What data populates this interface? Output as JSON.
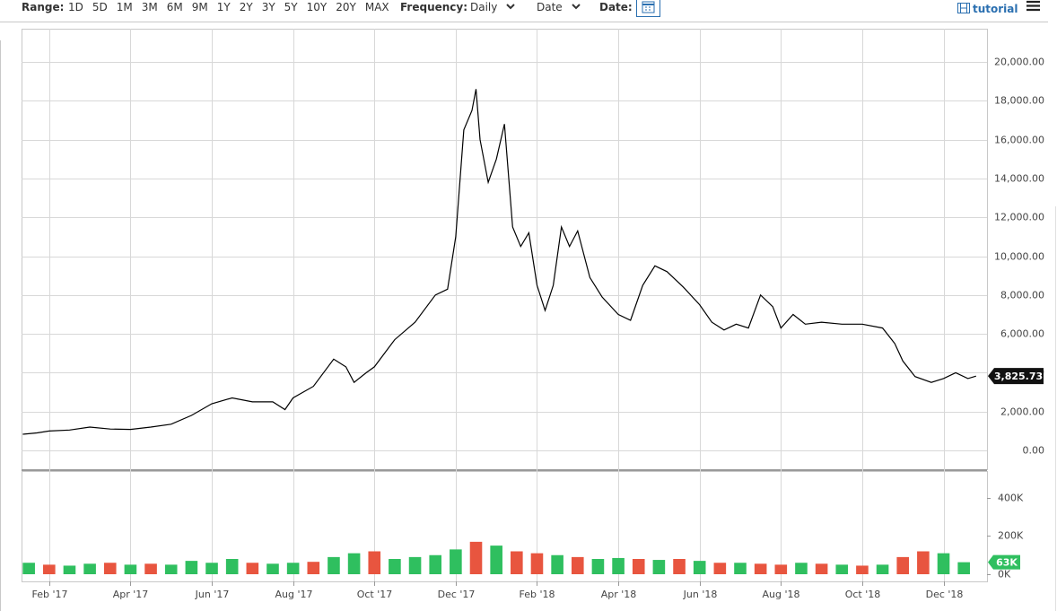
{
  "toolbar": {
    "range_label": "Range:",
    "ranges": [
      "1D",
      "5D",
      "1M",
      "3M",
      "6M",
      "9M",
      "1Y",
      "2Y",
      "3Y",
      "5Y",
      "10Y",
      "20Y",
      "MAX"
    ],
    "frequency_label": "Frequency:",
    "frequency": "Daily",
    "x_mode": "Date",
    "date_label": "Date:",
    "tutorial": "tutorial"
  },
  "chart_data": [
    {
      "type": "line",
      "color": "#000000",
      "grid": true,
      "x": [
        0.35,
        0.7,
        1,
        1.5,
        2,
        2.5,
        3,
        3.5,
        4,
        4.5,
        5,
        5.5,
        6,
        6.5,
        6.8,
        7,
        7.5,
        8,
        8.3,
        8.5,
        8.8,
        9,
        9.5,
        10,
        10.5,
        10.8,
        11,
        11.2,
        11.4,
        11.5,
        11.6,
        11.8,
        12,
        12.2,
        12.4,
        12.6,
        12.8,
        13,
        13.2,
        13.4,
        13.6,
        13.8,
        14,
        14.3,
        14.6,
        15,
        15.3,
        15.6,
        15.9,
        16.2,
        16.6,
        17,
        17.3,
        17.6,
        17.9,
        18.2,
        18.5,
        18.8,
        19,
        19.3,
        19.6,
        20,
        20.5,
        21,
        21.5,
        21.8,
        22,
        22.3,
        22.7,
        23,
        23.3,
        23.6,
        23.8
      ],
      "values": [
        830,
        900,
        1000,
        1050,
        1200,
        1100,
        1080,
        1200,
        1350,
        1800,
        2400,
        2700,
        2500,
        2500,
        2100,
        2700,
        3300,
        4700,
        4300,
        3500,
        4000,
        4300,
        5700,
        6600,
        8000,
        8300,
        11000,
        16500,
        17500,
        18600,
        16000,
        13800,
        15000,
        16800,
        11500,
        10500,
        11200,
        8500,
        7200,
        8500,
        11500,
        10500,
        11300,
        8900,
        7900,
        7000,
        6700,
        8500,
        9500,
        9200,
        8400,
        7500,
        6600,
        6200,
        6500,
        6300,
        8000,
        7400,
        6300,
        7000,
        6500,
        6600,
        6500,
        6500,
        6300,
        5500,
        4600,
        3800,
        3500,
        3700,
        4000,
        3700,
        3825.73
      ],
      "value_label": "3,825.73",
      "xlim": [
        0.32,
        24.07
      ],
      "xticks": [
        {
          "value": 1,
          "label": "Feb '17"
        },
        {
          "value": 3,
          "label": "Apr '17"
        },
        {
          "value": 5,
          "label": "Jun '17"
        },
        {
          "value": 7,
          "label": "Aug '17"
        },
        {
          "value": 9,
          "label": "Oct '17"
        },
        {
          "value": 11,
          "label": "Dec '17"
        },
        {
          "value": 13,
          "label": "Feb '18"
        },
        {
          "value": 15,
          "label": "Apr '18"
        },
        {
          "value": 17,
          "label": "Jun '18"
        },
        {
          "value": 19,
          "label": "Aug '18"
        },
        {
          "value": 21,
          "label": "Oct '18"
        },
        {
          "value": 23,
          "label": "Dec '18"
        }
      ],
      "ylim": [
        -970,
        21710
      ],
      "yticks": [
        {
          "value": 0,
          "label": "0.00"
        },
        {
          "value": 2000,
          "label": "2,000.00"
        },
        {
          "value": 4000,
          "label": "4,000.00"
        },
        {
          "value": 6000,
          "label": "6,000.00"
        },
        {
          "value": 8000,
          "label": "8,000.00"
        },
        {
          "value": 10000,
          "label": "10,000.00"
        },
        {
          "value": 12000,
          "label": "12,000.00"
        },
        {
          "value": 14000,
          "label": "14,000.00"
        },
        {
          "value": 16000,
          "label": "16,000.00"
        },
        {
          "value": 18000,
          "label": "18,000.00"
        },
        {
          "value": 20000,
          "label": "20,000.00"
        }
      ]
    },
    {
      "type": "bar",
      "x": [
        0.5,
        1,
        1.5,
        2,
        2.5,
        3,
        3.5,
        4,
        4.5,
        5,
        5.5,
        6,
        6.5,
        7,
        7.5,
        8,
        8.5,
        9,
        9.5,
        10,
        10.5,
        11,
        11.5,
        12,
        12.5,
        13,
        13.5,
        14,
        14.5,
        15,
        15.5,
        16,
        16.5,
        17,
        17.5,
        18,
        18.5,
        19,
        19.5,
        20,
        20.5,
        21,
        21.5,
        22,
        22.5,
        23,
        23.5
      ],
      "values": [
        60000,
        50000,
        45000,
        55000,
        60000,
        50000,
        55000,
        50000,
        70000,
        60000,
        80000,
        60000,
        55000,
        60000,
        65000,
        90000,
        110000,
        120000,
        80000,
        90000,
        100000,
        130000,
        170000,
        150000,
        120000,
        110000,
        100000,
        90000,
        80000,
        85000,
        80000,
        75000,
        80000,
        70000,
        60000,
        60000,
        55000,
        50000,
        60000,
        55000,
        50000,
        45000,
        50000,
        90000,
        120000,
        110000,
        63000
      ],
      "colors": [
        "#2fbf5f",
        "#e8553f",
        "#2fbf5f",
        "#2fbf5f",
        "#e8553f",
        "#2fbf5f",
        "#e8553f",
        "#2fbf5f",
        "#2fbf5f",
        "#2fbf5f",
        "#2fbf5f",
        "#e8553f",
        "#2fbf5f",
        "#2fbf5f",
        "#e8553f",
        "#2fbf5f",
        "#2fbf5f",
        "#e8553f",
        "#2fbf5f",
        "#2fbf5f",
        "#2fbf5f",
        "#2fbf5f",
        "#e8553f",
        "#2fbf5f",
        "#e8553f",
        "#e8553f",
        "#2fbf5f",
        "#e8553f",
        "#2fbf5f",
        "#2fbf5f",
        "#e8553f",
        "#2fbf5f",
        "#e8553f",
        "#2fbf5f",
        "#e8553f",
        "#2fbf5f",
        "#e8553f",
        "#e8553f",
        "#2fbf5f",
        "#e8553f",
        "#2fbf5f",
        "#e8553f",
        "#2fbf5f",
        "#e8553f",
        "#e8553f",
        "#2fbf5f",
        "#2fbf5f"
      ],
      "value_label": "63K",
      "xlim": [
        0.32,
        24.07
      ],
      "ylim": [
        -37600,
        541000
      ],
      "yticks": [
        {
          "value": 0,
          "label": "0K"
        },
        {
          "value": 200000,
          "label": "200K"
        },
        {
          "value": 400000,
          "label": "400K"
        }
      ]
    }
  ]
}
